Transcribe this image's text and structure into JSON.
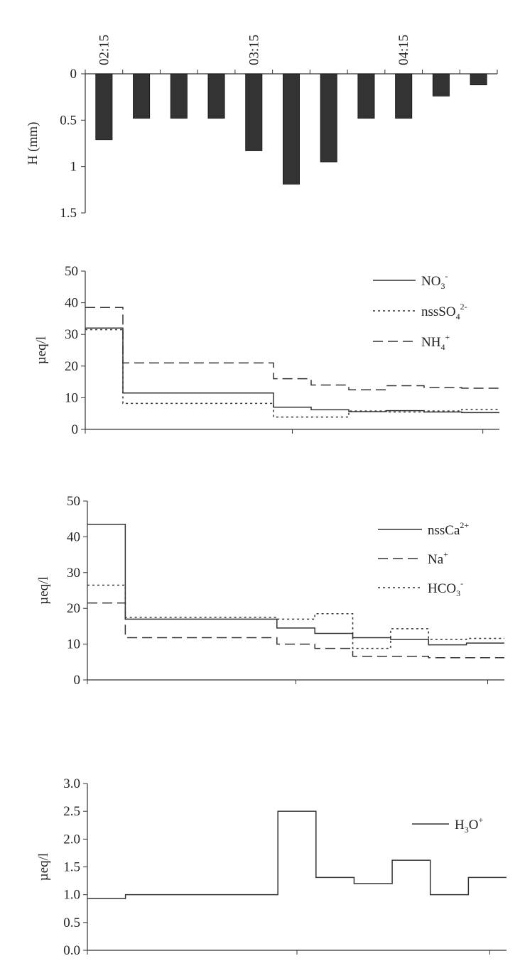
{
  "chart_data": [
    {
      "type": "bar",
      "orientation": "inverted",
      "categories": [
        "02:15",
        "",
        "",
        "",
        "03:15",
        "",
        "",
        "",
        "04:15",
        "",
        ""
      ],
      "time_labels": [
        "02:15",
        "03:15",
        "04:15"
      ],
      "values": [
        0.71,
        0.48,
        0.48,
        0.48,
        0.83,
        1.19,
        0.95,
        0.48,
        0.48,
        0.24,
        0.12
      ],
      "ylabel": "H (mm)",
      "ylim": [
        0,
        1.5
      ],
      "yticks": [
        "0",
        "0.5",
        "1",
        "1.5"
      ],
      "bar_color": "#333333"
    },
    {
      "type": "line",
      "step": true,
      "ylabel": "µeq/l",
      "ylim": [
        0,
        50
      ],
      "yticks": [
        "0",
        "10",
        "20",
        "30",
        "40",
        "50"
      ],
      "x": [
        0,
        1,
        5,
        6,
        7,
        8,
        9,
        10,
        11
      ],
      "xlim": [
        0,
        11
      ],
      "legend_position": "top-right",
      "series": [
        {
          "name": "NO3-",
          "label": "NO",
          "sub": "3",
          "sup": "-",
          "style": "solid",
          "values": [
            32,
            11.5,
            7,
            6.2,
            5.6,
            5.9,
            5.5,
            5.3,
            5.3
          ]
        },
        {
          "name": "nssSO42-",
          "label": "nssSO",
          "sub": "4",
          "sup": "2-",
          "style": "dotted",
          "values": [
            31.5,
            8.2,
            3.9,
            3.9,
            5.8,
            5.5,
            5.8,
            6.3,
            6.3
          ]
        },
        {
          "name": "NH4+",
          "label": "NH",
          "sub": "4",
          "sup": "+",
          "style": "dashed",
          "values": [
            38.5,
            21,
            16,
            14,
            12.5,
            13.8,
            13.2,
            13,
            13
          ]
        }
      ]
    },
    {
      "type": "line",
      "step": true,
      "ylabel": "µeq/l",
      "ylim": [
        0,
        50
      ],
      "yticks": [
        "0",
        "10",
        "20",
        "30",
        "40",
        "50"
      ],
      "x": [
        0,
        1,
        5,
        6,
        7,
        8,
        9,
        10,
        11
      ],
      "xlim": [
        0,
        11
      ],
      "legend_position": "top-right",
      "series": [
        {
          "name": "nssCa2+",
          "label": "nssCa",
          "sub": "",
          "sup": "2+",
          "style": "solid",
          "values": [
            43.5,
            17,
            14.5,
            13,
            11.8,
            11.3,
            9.8,
            10.3,
            10.3
          ]
        },
        {
          "name": "Na+",
          "label": "Na",
          "sub": "",
          "sup": "+",
          "style": "dashed",
          "values": [
            21.5,
            11.8,
            10,
            8.8,
            6.6,
            6.6,
            6.2,
            6.2,
            6.2
          ]
        },
        {
          "name": "HCO3-",
          "label": "HCO",
          "sub": "3",
          "sup": "-",
          "style": "dotted",
          "values": [
            26.5,
            17.5,
            17,
            18.5,
            8.8,
            14.3,
            11.3,
            11.6,
            11.6
          ]
        }
      ]
    },
    {
      "type": "line",
      "step": true,
      "ylabel": "µeq/l",
      "ylim": [
        0,
        3
      ],
      "yticks": [
        "0.0",
        "0.5",
        "1.0",
        "1.5",
        "2.0",
        "2.5",
        "3.0"
      ],
      "x": [
        0,
        1,
        5,
        6,
        7,
        8,
        9,
        10,
        11
      ],
      "xlim": [
        0,
        11
      ],
      "legend_position": "top-right",
      "series": [
        {
          "name": "H3O+",
          "label": "H",
          "sub": "3",
          "label2": "O",
          "sup": "+",
          "style": "solid",
          "values": [
            0.93,
            1.0,
            2.5,
            1.31,
            1.2,
            1.62,
            1.0,
            1.31,
            1.31
          ]
        }
      ]
    }
  ]
}
